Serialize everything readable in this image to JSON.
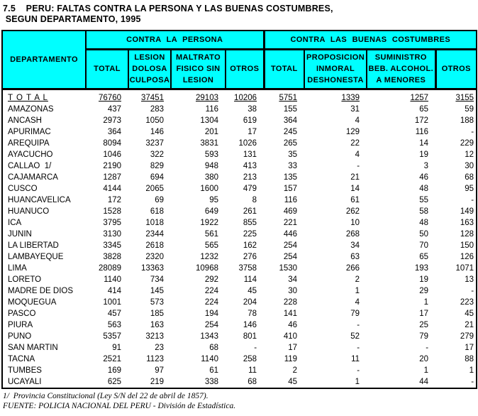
{
  "title": {
    "line1": "7.5    PERU: FALTAS CONTRA LA PERSONA Y LAS BUENAS COSTUMBRES,",
    "line2": " SEGUN DEPARTAMENTO, 1995"
  },
  "colors": {
    "header_background": "#00FFFF",
    "border": "#000000",
    "text": "#000000"
  },
  "table": {
    "corner_header": "DEPARTAMENTO",
    "groups": [
      {
        "label": "CONTRA LA PERSONA"
      },
      {
        "label": "CONTRA LAS BUENAS COSTUMBRES"
      }
    ],
    "columns": [
      "TOTAL",
      "LESION\nDOLOSA\nCULPOSA",
      "MALTRATO\nFISICO SIN\nLESION",
      "OTROS",
      "TOTAL",
      "PROPOSICION\nINMORAL\nDESHONESTA",
      "SUMINISTRO\nBEB. ALCOHOL.\nA MENORES",
      "OTROS"
    ],
    "rows": [
      {
        "label": "T O T A L",
        "total": true,
        "values": [
          "76760",
          "37451",
          "29103",
          "10206",
          "5751",
          "1339",
          "1257",
          "3155"
        ]
      },
      {
        "label": "AMAZONAS",
        "total": false,
        "values": [
          "437",
          "283",
          "116",
          "38",
          "155",
          "31",
          "65",
          "59"
        ]
      },
      {
        "label": "ANCASH",
        "total": false,
        "values": [
          "2973",
          "1050",
          "1304",
          "619",
          "364",
          "4",
          "172",
          "188"
        ]
      },
      {
        "label": "APURIMAC",
        "total": false,
        "values": [
          "364",
          "146",
          "201",
          "17",
          "245",
          "129",
          "116",
          "-"
        ]
      },
      {
        "label": "AREQUIPA",
        "total": false,
        "values": [
          "8094",
          "3237",
          "3831",
          "1026",
          "265",
          "22",
          "14",
          "229"
        ]
      },
      {
        "label": "AYACUCHO",
        "total": false,
        "values": [
          "1046",
          "322",
          "593",
          "131",
          "35",
          "4",
          "19",
          "12"
        ]
      },
      {
        "label": "CALLAO  1/",
        "total": false,
        "values": [
          "2190",
          "829",
          "948",
          "413",
          "33",
          "-",
          "3",
          "30"
        ]
      },
      {
        "label": "CAJAMARCA",
        "total": false,
        "values": [
          "1287",
          "694",
          "380",
          "213",
          "135",
          "21",
          "46",
          "68"
        ]
      },
      {
        "label": "CUSCO",
        "total": false,
        "values": [
          "4144",
          "2065",
          "1600",
          "479",
          "157",
          "14",
          "48",
          "95"
        ]
      },
      {
        "label": "HUANCAVELICA",
        "total": false,
        "values": [
          "172",
          "69",
          "95",
          "8",
          "116",
          "61",
          "55",
          "-"
        ]
      },
      {
        "label": "HUANUCO",
        "total": false,
        "values": [
          "1528",
          "618",
          "649",
          "261",
          "469",
          "262",
          "58",
          "149"
        ]
      },
      {
        "label": "ICA",
        "total": false,
        "values": [
          "3795",
          "1018",
          "1922",
          "855",
          "221",
          "10",
          "48",
          "163"
        ]
      },
      {
        "label": "JUNIN",
        "total": false,
        "values": [
          "3130",
          "2344",
          "561",
          "225",
          "446",
          "268",
          "50",
          "128"
        ]
      },
      {
        "label": "LA LIBERTAD",
        "total": false,
        "values": [
          "3345",
          "2618",
          "565",
          "162",
          "254",
          "34",
          "70",
          "150"
        ]
      },
      {
        "label": "LAMBAYEQUE",
        "total": false,
        "values": [
          "3828",
          "2320",
          "1232",
          "276",
          "254",
          "63",
          "65",
          "126"
        ]
      },
      {
        "label": "LIMA",
        "total": false,
        "values": [
          "28089",
          "13363",
          "10968",
          "3758",
          "1530",
          "266",
          "193",
          "1071"
        ]
      },
      {
        "label": "LORETO",
        "total": false,
        "values": [
          "1140",
          "734",
          "292",
          "114",
          "34",
          "2",
          "19",
          "13"
        ]
      },
      {
        "label": "MADRE DE DIOS",
        "total": false,
        "values": [
          "414",
          "145",
          "224",
          "45",
          "30",
          "1",
          "29",
          "-"
        ]
      },
      {
        "label": "MOQUEGUA",
        "total": false,
        "values": [
          "1001",
          "573",
          "224",
          "204",
          "228",
          "4",
          "1",
          "223"
        ]
      },
      {
        "label": "PASCO",
        "total": false,
        "values": [
          "457",
          "185",
          "194",
          "78",
          "141",
          "79",
          "17",
          "45"
        ]
      },
      {
        "label": "PIURA",
        "total": false,
        "values": [
          "563",
          "163",
          "254",
          "146",
          "46",
          "-",
          "25",
          "21"
        ]
      },
      {
        "label": "PUNO",
        "total": false,
        "values": [
          "5357",
          "3213",
          "1343",
          "801",
          "410",
          "52",
          "79",
          "279"
        ]
      },
      {
        "label": "SAN MARTIN",
        "total": false,
        "values": [
          "91",
          "23",
          "68",
          "-",
          "17",
          "-",
          "-",
          "17"
        ]
      },
      {
        "label": "TACNA",
        "total": false,
        "values": [
          "2521",
          "1123",
          "1140",
          "258",
          "119",
          "11",
          "20",
          "88"
        ]
      },
      {
        "label": "TUMBES",
        "total": false,
        "values": [
          "169",
          "97",
          "61",
          "11",
          "2",
          "-",
          "1",
          "1"
        ]
      },
      {
        "label": "UCAYALI",
        "total": false,
        "values": [
          "625",
          "219",
          "338",
          "68",
          "45",
          "1",
          "44",
          "-"
        ]
      }
    ]
  },
  "footer": {
    "footnote": "1/  Provincia Constitucional (Ley S/N del 22 de abril de 1857).",
    "source": "FUENTE: POLICIA NACIONAL DEL PERU - División de Estadística."
  }
}
